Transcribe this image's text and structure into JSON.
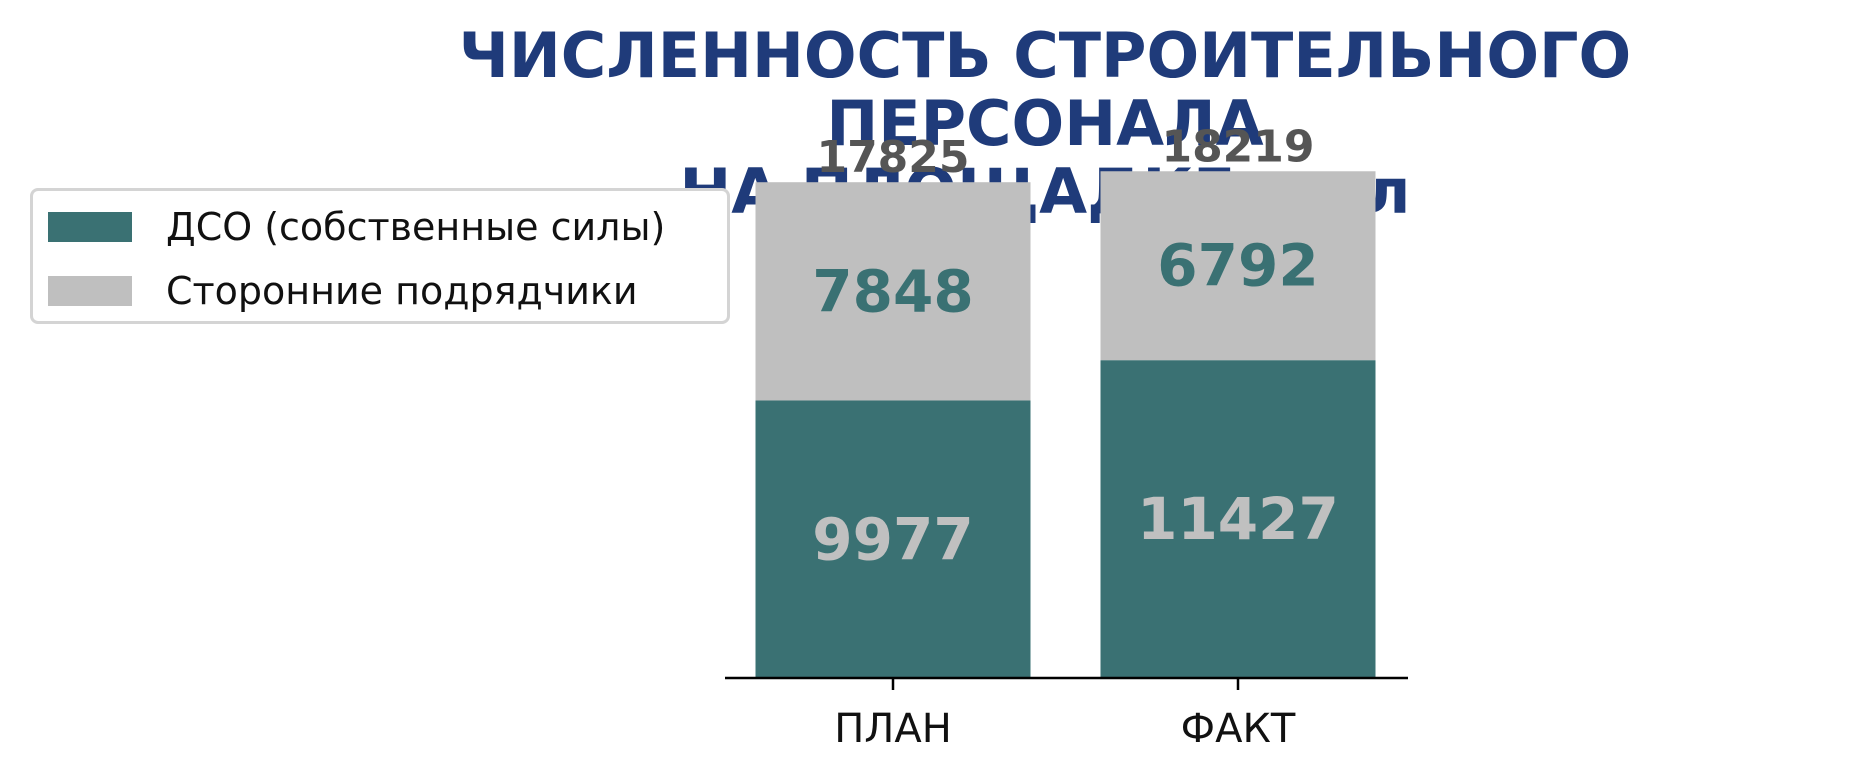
{
  "chart_data": {
    "type": "bar",
    "stacked": true,
    "title_lines": [
      "ЧИСЛЕННОСТЬ СТРОИТЕЛЬНОГО ПЕРСОНАЛА",
      "НА ПЛОЩАДКЕ, чел"
    ],
    "categories": [
      "ПЛАН",
      "ФАКТ"
    ],
    "series": [
      {
        "name": "ДСО (собственные силы)",
        "values": [
          9977,
          11427
        ],
        "color": "#3a7173",
        "label_color": "#c0c0c0"
      },
      {
        "name": "Сторонние подрядчики",
        "values": [
          7848,
          6792
        ],
        "color": "#bfbfbf",
        "label_color": "#3a7173"
      }
    ],
    "totals": [
      17825,
      18219
    ],
    "total_label_color": "#555555",
    "title_color": "#1f3b7a",
    "xlabel": "",
    "ylabel": "",
    "ylim": [
      0,
      21500
    ],
    "grid": false,
    "legend_position": "top-left"
  }
}
